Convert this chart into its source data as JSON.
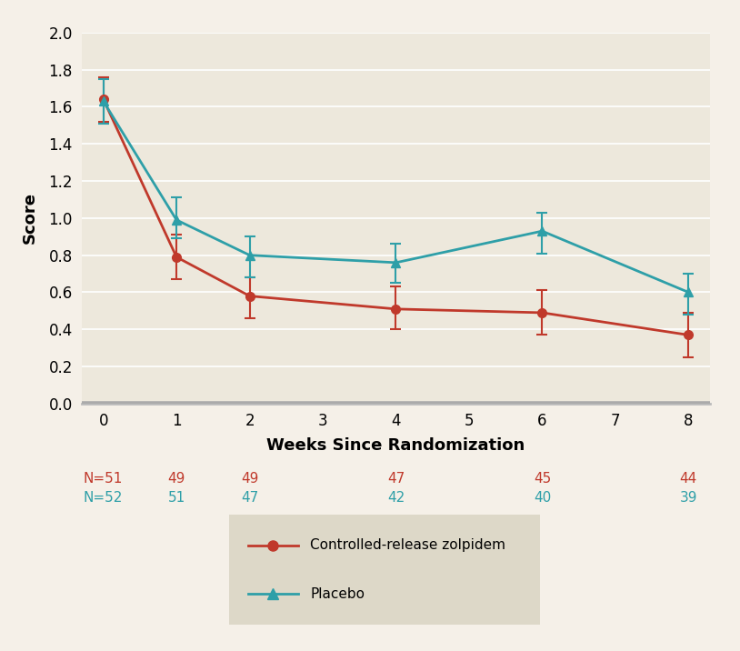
{
  "zolpidem_x": [
    0,
    1,
    2,
    4,
    6,
    8
  ],
  "zolpidem_y": [
    1.64,
    0.79,
    0.58,
    0.51,
    0.49,
    0.37
  ],
  "zolpidem_err_upper": [
    0.12,
    0.12,
    0.1,
    0.12,
    0.12,
    0.12
  ],
  "zolpidem_err_lower": [
    0.12,
    0.12,
    0.12,
    0.11,
    0.12,
    0.12
  ],
  "placebo_x": [
    0,
    1,
    2,
    4,
    6,
    8
  ],
  "placebo_y": [
    1.63,
    0.99,
    0.8,
    0.76,
    0.93,
    0.6
  ],
  "placebo_err_upper": [
    0.12,
    0.12,
    0.1,
    0.1,
    0.1,
    0.1
  ],
  "placebo_err_lower": [
    0.12,
    0.1,
    0.12,
    0.11,
    0.12,
    0.12
  ],
  "zolpidem_color": "#C0392B",
  "placebo_color": "#2E9FA8",
  "background_color": "#F5F0E8",
  "plot_bg_color": "#EDE8DC",
  "xlabel": "Weeks Since Randomization",
  "ylabel": "Score",
  "ylim": [
    0.0,
    2.0
  ],
  "yticks": [
    0.0,
    0.2,
    0.4,
    0.6,
    0.8,
    1.0,
    1.2,
    1.4,
    1.6,
    1.8,
    2.0
  ],
  "xticks": [
    0,
    1,
    2,
    3,
    4,
    5,
    6,
    7,
    8
  ],
  "legend_label_zolpidem": "Controlled-release zolpidem",
  "legend_label_placebo": "Placebo",
  "legend_bg_color": "#DDD8C8",
  "n_zolpidem": [
    "N=51",
    "49",
    "49",
    "47",
    "45",
    "44"
  ],
  "n_placebo": [
    "N=52",
    "51",
    "47",
    "42",
    "40",
    "39"
  ],
  "n_x_positions": [
    0,
    1,
    2,
    4,
    6,
    8
  ]
}
